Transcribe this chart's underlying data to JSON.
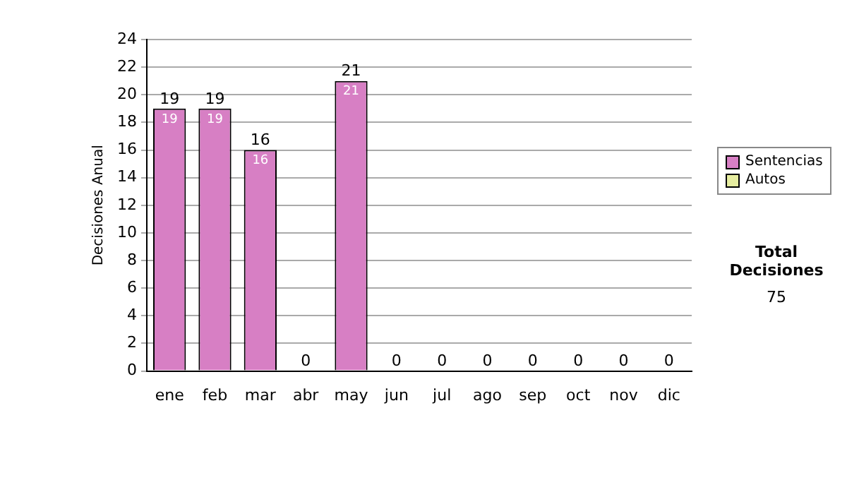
{
  "chart_data": {
    "type": "bar",
    "stacked": true,
    "ylabel": "Decisiones Anual",
    "categories": [
      "ene",
      "feb",
      "mar",
      "abr",
      "may",
      "jun",
      "jul",
      "ago",
      "sep",
      "oct",
      "nov",
      "dic"
    ],
    "series": [
      {
        "name": "Sentencias",
        "color": "#d77fc4",
        "values": [
          19,
          19,
          16,
          0,
          21,
          0,
          0,
          0,
          0,
          0,
          0,
          0
        ],
        "value_labels": [
          "19",
          "19",
          "16",
          null,
          "21",
          null,
          null,
          null,
          null,
          null,
          null,
          null
        ]
      },
      {
        "name": "Autos",
        "color": "#e6eda0",
        "values": [
          0,
          0,
          0,
          0,
          0,
          0,
          0,
          0,
          0,
          0,
          0,
          0
        ]
      }
    ],
    "totals": [
      "19",
      "19",
      "16",
      "0",
      "21",
      "0",
      "0",
      "0",
      "0",
      "0",
      "0",
      "0"
    ],
    "ylim": [
      0,
      24
    ],
    "yticks": [
      0,
      2,
      4,
      6,
      8,
      10,
      12,
      14,
      16,
      18,
      20,
      22,
      24
    ],
    "grid": "y",
    "legend": "right",
    "annotations": [
      "Total Decisiones",
      "75"
    ]
  }
}
